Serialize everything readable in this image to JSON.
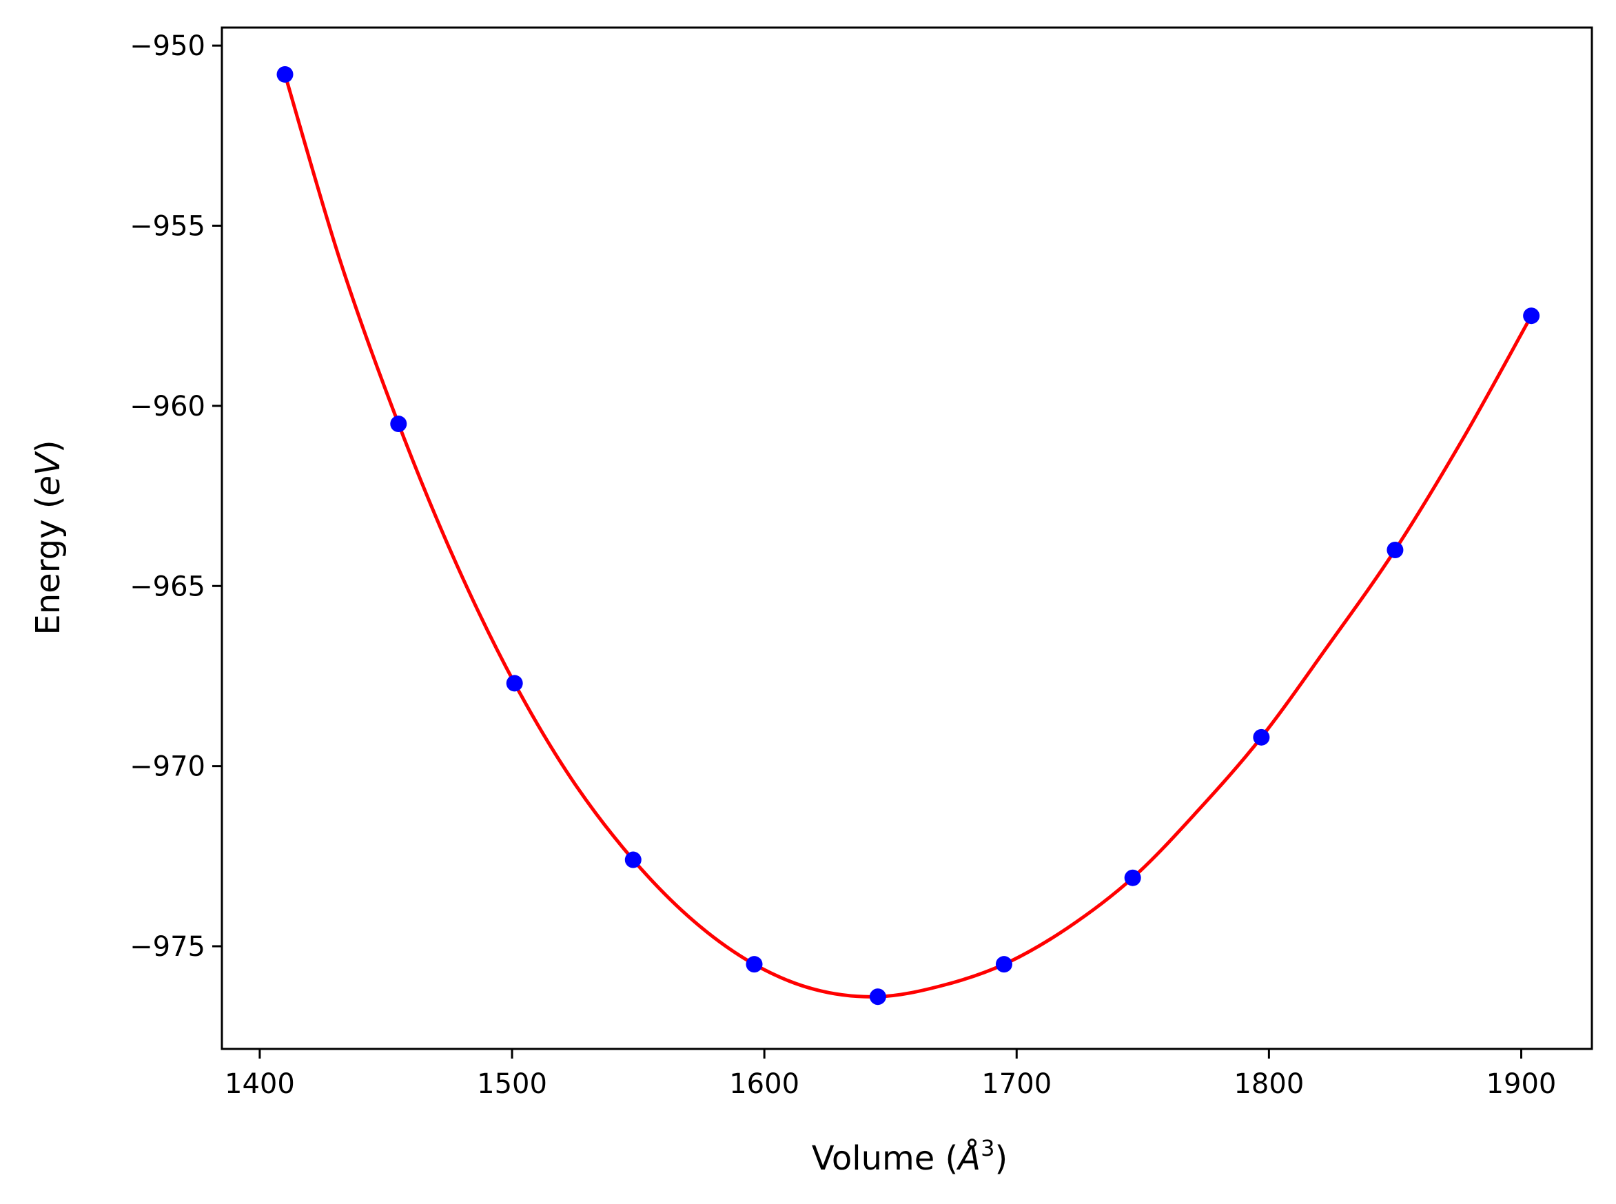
{
  "chart_data": {
    "type": "scatter",
    "xlabel": "Volume ($\\AA^3$)",
    "xlabel_parts": {
      "pre": "Volume (",
      "sym": "Å",
      "sup": "3",
      "post": ")"
    },
    "ylabel": "Energy ($eV$)",
    "ylabel_parts": {
      "pre": "Energy (",
      "ital": "eV",
      "post": ")"
    },
    "xlim": [
      1385,
      1928
    ],
    "ylim": [
      -977.85,
      -949.5
    ],
    "xticks": [
      1400,
      1500,
      1600,
      1700,
      1800,
      1900
    ],
    "xtick_labels": [
      "1400",
      "1500",
      "1600",
      "1700",
      "1800",
      "1900"
    ],
    "yticks": [
      -950,
      -955,
      -960,
      -965,
      -970,
      -975
    ],
    "ytick_labels": [
      "−950",
      "−955",
      "−960",
      "−965",
      "−970",
      "−975"
    ],
    "grid": false,
    "series": [
      {
        "kind": "points",
        "color": "#0000ff",
        "x": [
          1410,
          1455,
          1501,
          1548,
          1596,
          1645,
          1695,
          1746,
          1797,
          1850,
          1904
        ],
        "y": [
          -950.8,
          -960.5,
          -967.7,
          -972.6,
          -975.5,
          -976.4,
          -975.5,
          -973.1,
          -969.2,
          -964.0,
          -957.5
        ]
      },
      {
        "kind": "fit-curve",
        "color": "#ff0000",
        "x": [
          1410,
          1432,
          1455,
          1478,
          1501,
          1524,
          1548,
          1572,
          1596,
          1620,
          1645,
          1670,
          1695,
          1720,
          1746,
          1771,
          1797,
          1823,
          1850,
          1877,
          1904
        ],
        "y": [
          -950.8,
          -956.0,
          -960.5,
          -964.4,
          -967.7,
          -970.4,
          -972.6,
          -974.3,
          -975.5,
          -976.2,
          -976.4,
          -976.1,
          -975.5,
          -974.5,
          -973.1,
          -971.3,
          -969.2,
          -966.7,
          -964.0,
          -960.9,
          -957.5
        ]
      }
    ]
  }
}
